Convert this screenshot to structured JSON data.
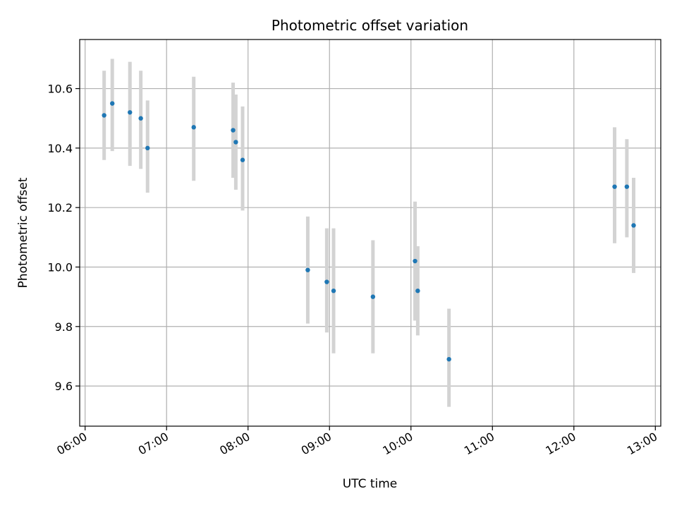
{
  "chart_data": {
    "type": "scatter",
    "title": "Photometric offset variation",
    "xlabel": "UTC time",
    "ylabel": "Photometric offset",
    "x_unit": "UTC time (HH:MM)",
    "xlim": [
      "05:56",
      "13:04"
    ],
    "ylim": [
      9.465,
      10.765
    ],
    "grid": true,
    "x_ticks": [
      "06:00",
      "07:00",
      "08:00",
      "09:00",
      "10:00",
      "11:00",
      "12:00",
      "13:00"
    ],
    "y_ticks": [
      9.6,
      9.8,
      10.0,
      10.2,
      10.4,
      10.6
    ],
    "marker_color": "#1f77b4",
    "errorbar_color": "#d3d3d3",
    "points": [
      {
        "x": "06:14",
        "y": 10.51,
        "ylo": 10.36,
        "yhi": 10.66
      },
      {
        "x": "06:20",
        "y": 10.55,
        "ylo": 10.39,
        "yhi": 10.7
      },
      {
        "x": "06:33",
        "y": 10.52,
        "ylo": 10.34,
        "yhi": 10.69
      },
      {
        "x": "06:41",
        "y": 10.5,
        "ylo": 10.33,
        "yhi": 10.66
      },
      {
        "x": "06:46",
        "y": 10.4,
        "ylo": 10.25,
        "yhi": 10.56
      },
      {
        "x": "07:20",
        "y": 10.47,
        "ylo": 10.29,
        "yhi": 10.64
      },
      {
        "x": "07:49",
        "y": 10.46,
        "ylo": 10.3,
        "yhi": 10.62
      },
      {
        "x": "07:51",
        "y": 10.42,
        "ylo": 10.26,
        "yhi": 10.58
      },
      {
        "x": "07:56",
        "y": 10.36,
        "ylo": 10.19,
        "yhi": 10.54
      },
      {
        "x": "08:44",
        "y": 9.99,
        "ylo": 9.81,
        "yhi": 10.17
      },
      {
        "x": "08:58",
        "y": 9.95,
        "ylo": 9.78,
        "yhi": 10.13
      },
      {
        "x": "09:03",
        "y": 9.92,
        "ylo": 9.71,
        "yhi": 10.13
      },
      {
        "x": "09:32",
        "y": 9.9,
        "ylo": 9.71,
        "yhi": 10.09
      },
      {
        "x": "10:03",
        "y": 10.02,
        "ylo": 9.82,
        "yhi": 10.22
      },
      {
        "x": "10:05",
        "y": 9.92,
        "ylo": 9.77,
        "yhi": 10.07
      },
      {
        "x": "10:28",
        "y": 9.69,
        "ylo": 9.53,
        "yhi": 9.86
      },
      {
        "x": "12:30",
        "y": 10.27,
        "ylo": 10.08,
        "yhi": 10.47
      },
      {
        "x": "12:39",
        "y": 10.27,
        "ylo": 10.1,
        "yhi": 10.43
      },
      {
        "x": "12:44",
        "y": 10.14,
        "ylo": 9.98,
        "yhi": 10.3
      }
    ]
  }
}
